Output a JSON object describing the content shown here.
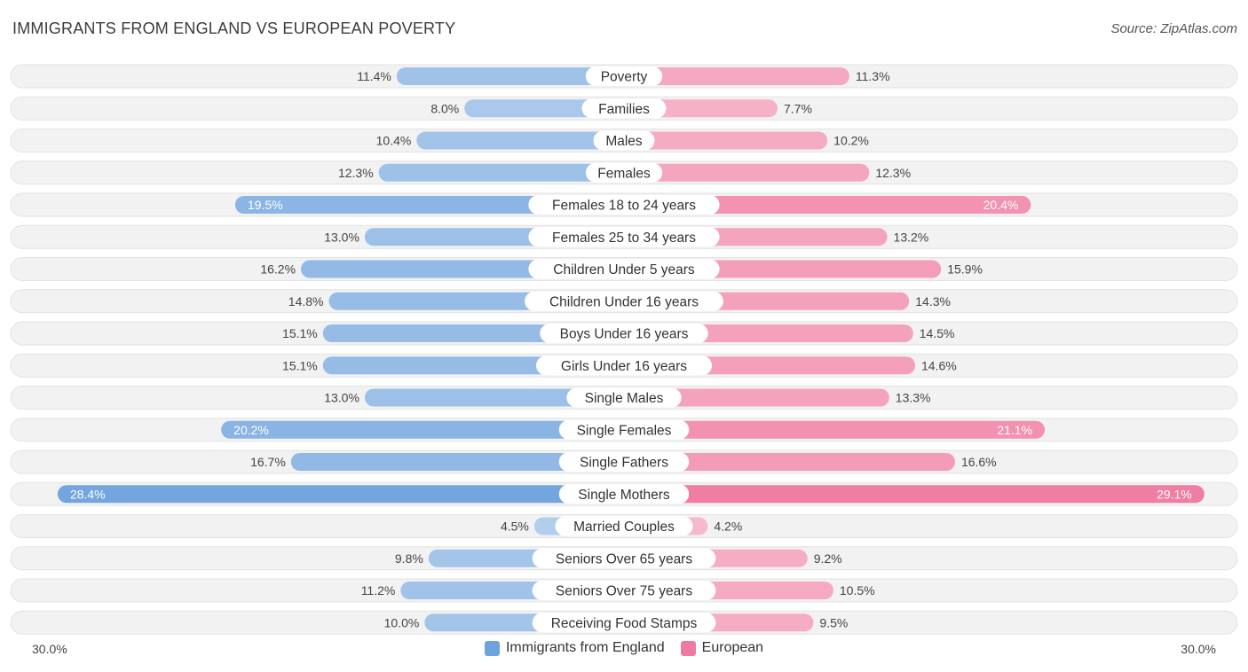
{
  "header": {
    "title": "IMMIGRANTS FROM ENGLAND VS EUROPEAN POVERTY",
    "source": "Source: ZipAtlas.com"
  },
  "colors": {
    "left_series": "#6fa3dd",
    "right_series": "#f07ba0",
    "row_bg": "#f0f0f0"
  },
  "chart_data": {
    "type": "bar",
    "orientation": "horizontal-diverging",
    "title": "IMMIGRANTS FROM ENGLAND VS EUROPEAN POVERTY",
    "axis_min_label": "30.0%",
    "axis_max_label": "30.0%",
    "xlim": [
      0,
      30
    ],
    "categories": [
      "Poverty",
      "Families",
      "Males",
      "Females",
      "Females 18 to 24 years",
      "Females 25 to 34 years",
      "Children Under 5 years",
      "Children Under 16 years",
      "Boys Under 16 years",
      "Girls Under 16 years",
      "Single Males",
      "Single Females",
      "Single Fathers",
      "Single Mothers",
      "Married Couples",
      "Seniors Over 65 years",
      "Seniors Over 75 years",
      "Receiving Food Stamps"
    ],
    "series": [
      {
        "name": "Immigrants from England",
        "values": [
          11.4,
          8.0,
          10.4,
          12.3,
          19.5,
          13.0,
          16.2,
          14.8,
          15.1,
          15.1,
          13.0,
          20.2,
          16.7,
          28.4,
          4.5,
          9.8,
          11.2,
          10.0
        ],
        "labels": [
          "11.4%",
          "8.0%",
          "10.4%",
          "12.3%",
          "19.5%",
          "13.0%",
          "16.2%",
          "14.8%",
          "15.1%",
          "15.1%",
          "13.0%",
          "20.2%",
          "16.7%",
          "28.4%",
          "4.5%",
          "9.8%",
          "11.2%",
          "10.0%"
        ]
      },
      {
        "name": "European",
        "values": [
          11.3,
          7.7,
          10.2,
          12.3,
          20.4,
          13.2,
          15.9,
          14.3,
          14.5,
          14.6,
          13.3,
          21.1,
          16.6,
          29.1,
          4.2,
          9.2,
          10.5,
          9.5
        ],
        "labels": [
          "11.3%",
          "7.7%",
          "10.2%",
          "12.3%",
          "20.4%",
          "13.2%",
          "15.9%",
          "14.3%",
          "14.5%",
          "14.6%",
          "13.3%",
          "21.1%",
          "16.6%",
          "29.1%",
          "4.2%",
          "9.2%",
          "10.5%",
          "9.5%"
        ]
      }
    ],
    "legend": [
      "Immigrants from England",
      "European"
    ],
    "legend_position": "bottom-center"
  }
}
